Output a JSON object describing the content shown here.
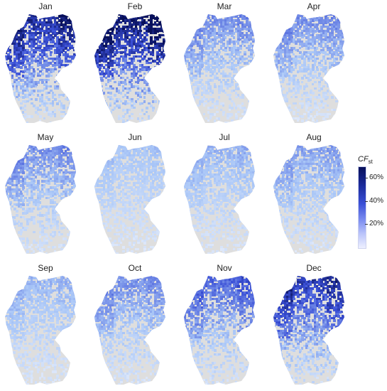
{
  "months": [
    {
      "label": "Jan",
      "intensity": 0.75
    },
    {
      "label": "Feb",
      "intensity": 0.85
    },
    {
      "label": "Mar",
      "intensity": 0.45
    },
    {
      "label": "Apr",
      "intensity": 0.45
    },
    {
      "label": "May",
      "intensity": 0.45
    },
    {
      "label": "Jun",
      "intensity": 0.3
    },
    {
      "label": "Jul",
      "intensity": 0.35
    },
    {
      "label": "Aug",
      "intensity": 0.4
    },
    {
      "label": "Sep",
      "intensity": 0.35
    },
    {
      "label": "Oct",
      "intensity": 0.45
    },
    {
      "label": "Nov",
      "intensity": 0.55
    },
    {
      "label": "Dec",
      "intensity": 0.7
    }
  ],
  "legend": {
    "title_main": "CF",
    "title_sub": "st",
    "ticks": [
      "60%",
      "40%",
      "20%"
    ],
    "tick_values": [
      0.6,
      0.4,
      0.2
    ],
    "range": [
      0,
      0.7
    ]
  },
  "colors": {
    "base": "#dedede",
    "dark": "#08105a",
    "mid": "#3a4fd6",
    "light": "#a9c6f7"
  }
}
